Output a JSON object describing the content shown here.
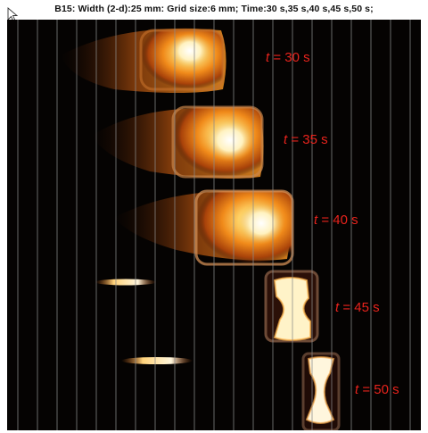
{
  "title": "B15: Width (2-d):25 mm: Grid size:6 mm;   Time:30 s,35 s,40 s,45 s,50 s;",
  "time_labels": [
    {
      "var": "t",
      "value": " = 30 s"
    },
    {
      "var": "t",
      "value": " = 35 s"
    },
    {
      "var": "t",
      "value": " = 40 s"
    },
    {
      "var": "t",
      "value": " = 45 s"
    },
    {
      "var": "t",
      "value": " = 50 s"
    }
  ],
  "colors": {
    "label": "#e8231c",
    "background": "#050302",
    "grid": "#8a8a8a"
  },
  "icons": {
    "cursor": "mouse-pointer-icon"
  }
}
